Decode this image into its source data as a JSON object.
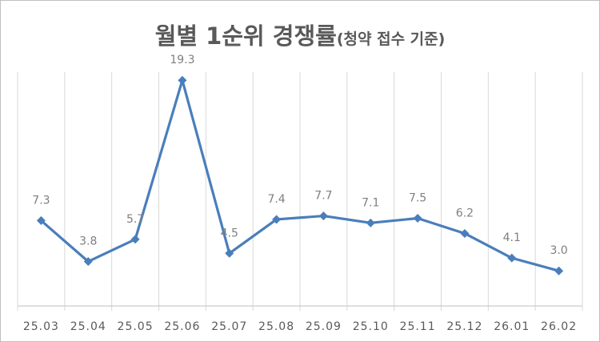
{
  "chart_data": {
    "type": "line",
    "title": "월별 1순위 경쟁률",
    "subtitle": "(청약 접수 기준)",
    "categories": [
      "25.03",
      "25.04",
      "25.05",
      "25.06",
      "25.07",
      "25.08",
      "25.09",
      "25.10",
      "25.11",
      "25.12",
      "26.01",
      "26.02"
    ],
    "series": [
      {
        "values": [
          7.3,
          3.8,
          5.7,
          19.3,
          4.5,
          7.4,
          7.7,
          7.1,
          7.5,
          6.2,
          4.1,
          3.0
        ],
        "labels": [
          "7.3",
          "3.8",
          "5.7",
          "19.3",
          "4.5",
          "7.4",
          "7.7",
          "7.1",
          "7.5",
          "6.2",
          "4.1",
          "3.0"
        ],
        "color": "#4a7ebb",
        "marker": "diamond"
      }
    ],
    "ylim": [
      0,
      20
    ],
    "grid": "vertical",
    "gridColor": "#d9d9d9",
    "axisColor": "#bfbfbf",
    "legend": "none"
  }
}
